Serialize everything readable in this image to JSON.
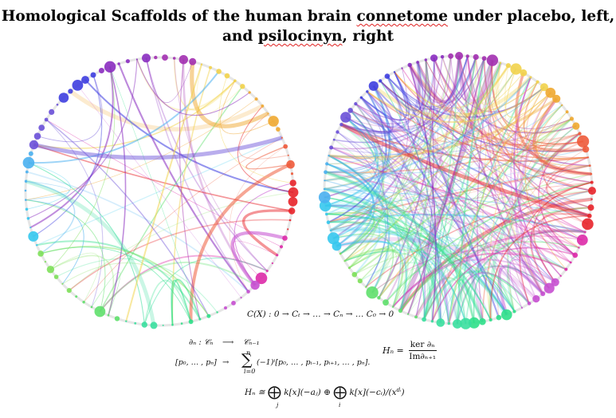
{
  "title": {
    "line1_a": "Homological Scaffolds of the human brain ",
    "line1_b": "connetome",
    "line1_c": " under placebo, left,",
    "line2_a": "and ",
    "line2_b": "psilocinyn",
    "line2_c": ", right"
  },
  "diagrams": {
    "left": {
      "condition": "placebo",
      "edge_density": "sparse"
    },
    "right": {
      "condition": "psilocinyn",
      "edge_density": "dense"
    },
    "colors": [
      "#f2d34b",
      "#f0a830",
      "#ee5a3a",
      "#e8242a",
      "#dd2aa8",
      "#c64fd0",
      "#2fe08a",
      "#3adf9e",
      "#5fe06c",
      "#7ee05a",
      "#35c8ee",
      "#4ab0f0",
      "#6a50d8",
      "#3e3ee0",
      "#8a2cc0",
      "#a22fb0"
    ]
  },
  "equations": {
    "chain": "C(X) : 0 → Cₜ → … → Cₙ → … C₀ → 0",
    "boundary_lhs": "∂ₙ : 𝒞ₙ",
    "boundary_arrow": "⟶",
    "boundary_rhs": "𝒞ₙ₋₁",
    "simplex": "[p₀, … , pₙ]",
    "maps_to": "→",
    "sum_top": "n",
    "sum_symbol": "∑",
    "sum_bottom": "i=0",
    "sum_tail": "(−1)ⁱ[p₀, … , pᵢ₋₁, pᵢ₊₁, … , pₙ].",
    "hn_lhs": "Hₙ =",
    "hn_num": "ker ∂ₙ",
    "hn_den": "Im∂ₙ₊₁",
    "decomp_lhs": "Hₙ ≅ ",
    "oplus": "⨁",
    "term1": " k[x](−aⱼ) ⊕ ",
    "term2": " k[x](−cᵢ)/(x",
    "term2_sup": "dᵢ",
    "term2_end": ")",
    "below_j": "j",
    "below_i": "i"
  }
}
